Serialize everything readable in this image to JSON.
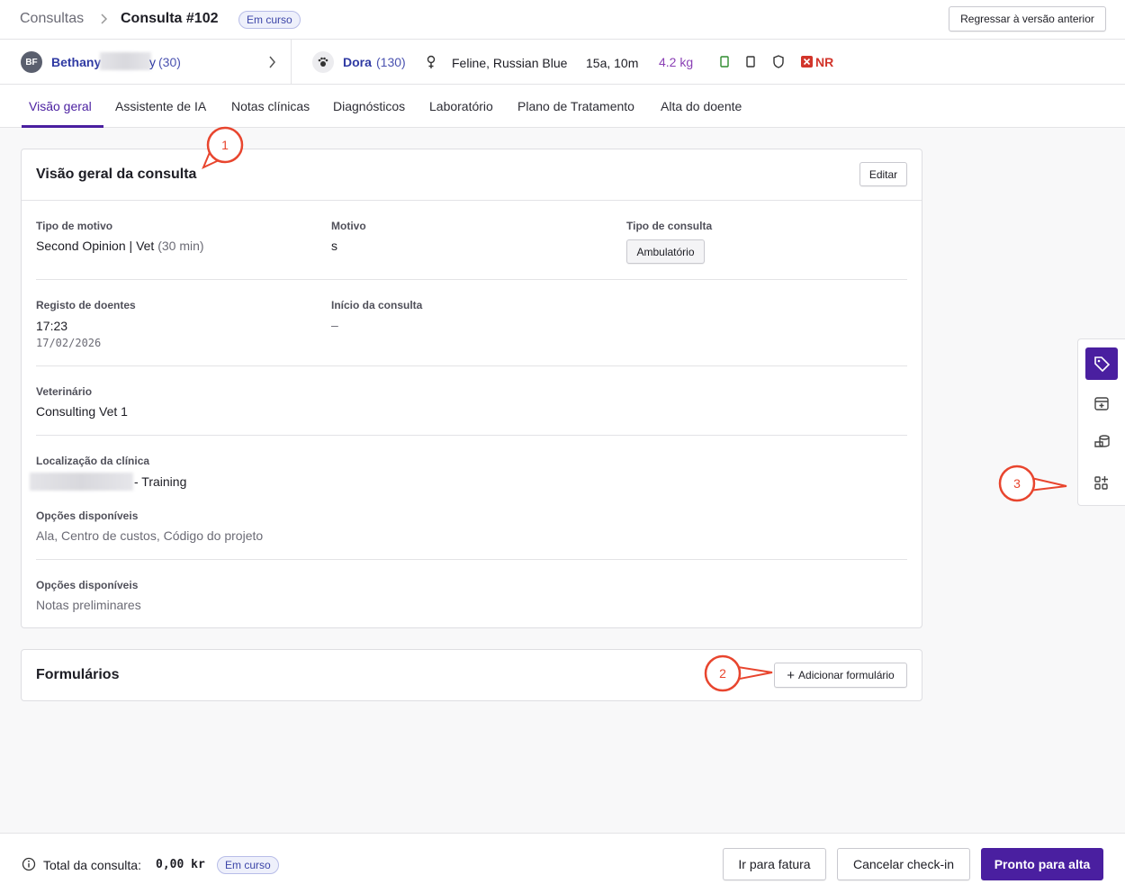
{
  "breadcrumb": {
    "parent": "Consultas",
    "title": "Consulta #102",
    "status": "Em curso"
  },
  "revert_button": "Regressar à versão anterior",
  "client": {
    "initials": "BF",
    "name": "Bethany",
    "name_end": "y",
    "id": "(30)"
  },
  "patient": {
    "name": "Dora",
    "id": "(130)",
    "breed": "Feline, Russian Blue",
    "age": "15a, 10m",
    "weight": "4.2 kg",
    "flag": "NR"
  },
  "tabs": [
    "Visão geral",
    "Assistente de IA",
    "Notas clínicas",
    "Diagnósticos",
    "Laboratório",
    "Plano de Tratamento",
    "Alta do doente"
  ],
  "overview": {
    "title": "Visão geral da consulta",
    "edit": "Editar",
    "reason_type": {
      "label": "Tipo de motivo",
      "value": "Second Opinion",
      "vet": "Vet",
      "duration": "(30 min)"
    },
    "reason": {
      "label": "Motivo",
      "value": "s"
    },
    "consult_type": {
      "label": "Tipo de consulta",
      "value": "Ambulatório"
    },
    "registration": {
      "label": "Registo de doentes",
      "time": "17:23",
      "date": "17/02/2026"
    },
    "start": {
      "label": "Início da consulta",
      "value": "–"
    },
    "vet": {
      "label": "Veterinário",
      "value": "Consulting Vet 1"
    },
    "location": {
      "label": "Localização da clínica",
      "value": "- Training"
    },
    "options1": {
      "label": "Opções disponíveis",
      "value": "Ala, Centro de custos, Código do projeto"
    },
    "options2": {
      "label": "Opções disponíveis",
      "value": "Notas preliminares"
    }
  },
  "forms": {
    "title": "Formulários",
    "add": "Adicionar formulário"
  },
  "annotations": [
    "1",
    "2",
    "3"
  ],
  "footer": {
    "total_label": "Total da consulta:",
    "total": "0,00 kr",
    "status": "Em curso",
    "buttons": [
      "Ir para fatura",
      "Cancelar check-in",
      "Pronto para alta"
    ]
  }
}
